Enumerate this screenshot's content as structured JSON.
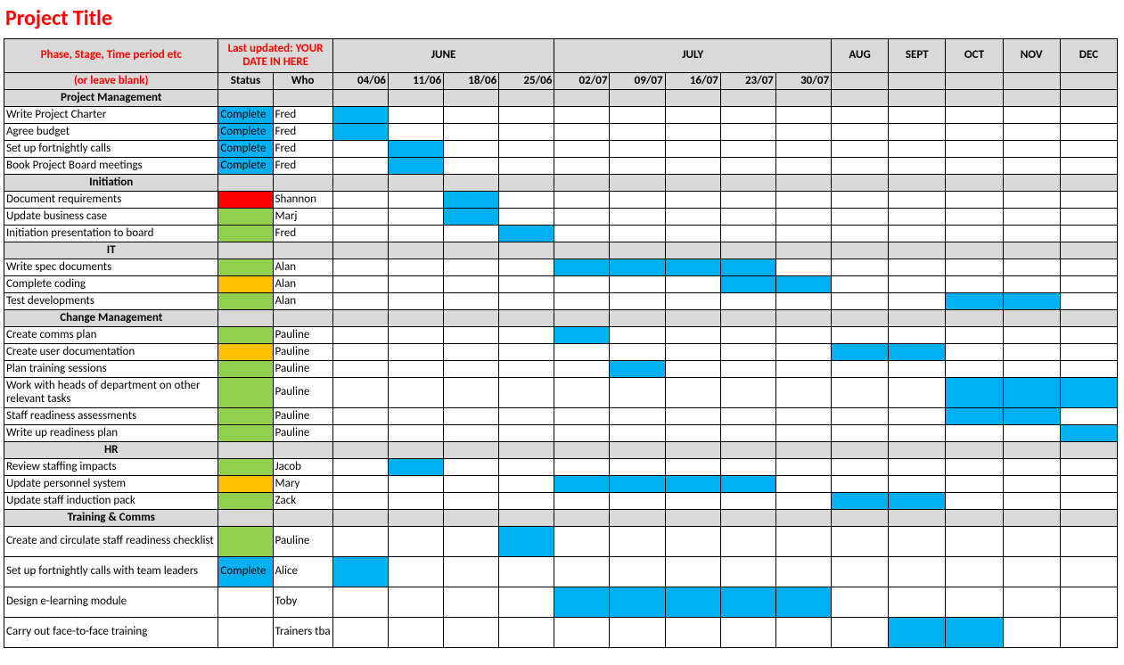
{
  "title": "Project Title",
  "headers": {
    "phase_label": "Phase, Stage, Time period etc",
    "or_blank": "(or leave blank)",
    "last_updated": "Last updated: YOUR DATE IN HERE",
    "status": "Status",
    "who": "Who",
    "months": {
      "june": "JUNE",
      "july": "JULY",
      "aug": "AUG",
      "sept": "SEPT",
      "oct": "OCT",
      "nov": "NOV",
      "dec": "DEC"
    },
    "dates": {
      "d0": "04/06",
      "d1": "11/06",
      "d2": "18/06",
      "d3": "25/06",
      "d4": "02/07",
      "d5": "09/07",
      "d6": "16/07",
      "d7": "23/07",
      "d8": "30/07"
    }
  },
  "colors": {
    "complete": "#00b0f0",
    "green": "#92d050",
    "amber": "#ffc000",
    "red": "#ff0000",
    "timeline": "#00b0f0",
    "section_bg": "#d9d9d9",
    "title_color": "#ff0000",
    "border": "#000000"
  },
  "status_labels": {
    "complete": "Complete"
  },
  "timeline_columns": [
    "d0",
    "d1",
    "d2",
    "d3",
    "d4",
    "d5",
    "d6",
    "d7",
    "d8",
    "aug",
    "sept",
    "oct",
    "nov",
    "dec"
  ],
  "sections": [
    {
      "name": "Project Management",
      "tasks": [
        {
          "label": "Write Project Charter",
          "status": "complete",
          "who": "Fred",
          "bars": [
            "d0"
          ]
        },
        {
          "label": "Agree budget",
          "status": "complete",
          "who": "Fred",
          "bars": [
            "d0"
          ]
        },
        {
          "label": "Set up fortnightly calls",
          "status": "complete",
          "who": "Fred",
          "bars": [
            "d1"
          ]
        },
        {
          "label": "Book Project Board meetings",
          "status": "complete",
          "who": "Fred",
          "bars": [
            "d1"
          ]
        }
      ]
    },
    {
      "name": "Initiation",
      "tasks": [
        {
          "label": "Document requirements",
          "status": "red",
          "who": "Shannon",
          "bars": [
            "d2"
          ]
        },
        {
          "label": "Update business case",
          "status": "green",
          "who": "Marj",
          "bars": [
            "d2"
          ]
        },
        {
          "label": "Initiation presentation to board",
          "status": "green",
          "who": "Fred",
          "bars": [
            "d3"
          ]
        }
      ]
    },
    {
      "name": "IT",
      "tasks": [
        {
          "label": "Write spec documents",
          "status": "green",
          "who": "Alan",
          "bars": [
            "d4",
            "d5",
            "d6",
            "d7"
          ]
        },
        {
          "label": "Complete coding",
          "status": "amber",
          "who": "Alan",
          "bars": [
            "d7",
            "d8"
          ]
        },
        {
          "label": "Test developments",
          "status": "green",
          "who": "Alan",
          "bars": [
            "oct",
            "nov"
          ]
        }
      ]
    },
    {
      "name": "Change Management",
      "tasks": [
        {
          "label": "Create comms plan",
          "status": "green",
          "who": "Pauline",
          "bars": [
            "d4"
          ]
        },
        {
          "label": "Create user documentation",
          "status": "amber",
          "who": "Pauline",
          "bars": [
            "aug",
            "sept"
          ]
        },
        {
          "label": "Plan training sessions",
          "status": "green",
          "who": "Pauline",
          "bars": [
            "d5"
          ]
        },
        {
          "label": "Work with heads of department on other relevant tasks",
          "status": "green",
          "who": "Pauline",
          "bars": [
            "oct",
            "nov",
            "dec"
          ],
          "tall": true
        },
        {
          "label": "Staff readiness assessments",
          "status": "green",
          "who": "Pauline",
          "bars": [
            "oct",
            "nov"
          ]
        },
        {
          "label": "Write up readiness plan",
          "status": "green",
          "who": "Pauline",
          "bars": [
            "dec"
          ]
        }
      ]
    },
    {
      "name": "HR",
      "tasks": [
        {
          "label": "Review staffing impacts",
          "status": "green",
          "who": "Jacob",
          "bars": [
            "d1"
          ]
        },
        {
          "label": "Update personnel system",
          "status": "amber",
          "who": "Mary",
          "bars": [
            "d4",
            "d5",
            "d6",
            "d7"
          ]
        },
        {
          "label": "Update staff induction pack",
          "status": "green",
          "who": "Zack",
          "bars": [
            "aug",
            "sept"
          ]
        }
      ]
    },
    {
      "name": "Training & Comms",
      "tasks": [
        {
          "label": "Create and circulate staff readiness checklist",
          "status": "green",
          "who": "Pauline",
          "bars": [
            "d3"
          ],
          "tall": true
        },
        {
          "label": "Set up fortnightly calls with team leaders",
          "status": "complete",
          "who": "Alice",
          "bars": [
            "d0"
          ],
          "tall": true
        },
        {
          "label": "Design e-learning module",
          "status": "",
          "who": "Toby",
          "bars": [
            "d4",
            "d5",
            "d6",
            "d7",
            "d8"
          ],
          "tall": true
        },
        {
          "label": "Carry out face-to-face training",
          "status": "",
          "who": "Trainers tba",
          "bars": [
            "sept",
            "oct"
          ],
          "tall": true
        }
      ]
    }
  ]
}
